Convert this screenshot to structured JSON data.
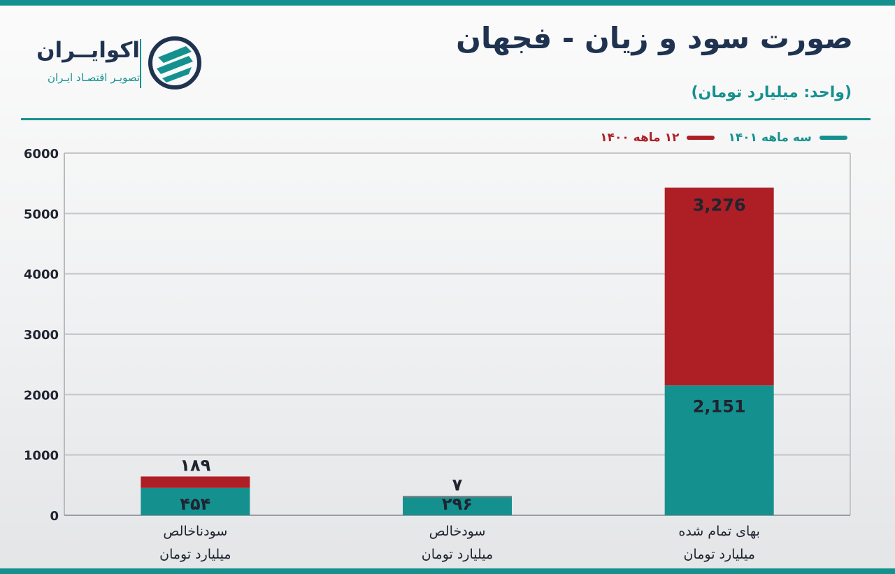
{
  "header": {
    "title": "صورت سود و زیان - فجهان",
    "subtitle": "(واحد: میلیارد تومان)"
  },
  "logo": {
    "name": "اکوایــران",
    "tagline": "تصویـر اقتصـاد ایـران"
  },
  "colors": {
    "teal": "#14918f",
    "red": "#ad1f25",
    "navy": "#1f3350"
  },
  "chart_data": {
    "type": "bar",
    "stacked": true,
    "title": "صورت سود و زیان - فجهان",
    "ylim": [
      0,
      6000
    ],
    "y_ticks": [
      {
        "value": 0,
        "label": "0"
      },
      {
        "value": 1000,
        "label": "1000"
      },
      {
        "value": 2000,
        "label": "2000"
      },
      {
        "value": 3000,
        "label": "3000"
      },
      {
        "value": 4000,
        "label": "4000"
      },
      {
        "value": 5000,
        "label": "5000"
      },
      {
        "value": 6000,
        "label": "6000"
      }
    ],
    "grid": true,
    "legend_position": "top-right",
    "categories": [
      {
        "line1": "سودناخالص",
        "line2": "میلیارد تومان"
      },
      {
        "line1": "سودخالص",
        "line2": "میلیارد تومان"
      },
      {
        "line1": "بهای تمام شده",
        "line2": "میلیارد تومان"
      }
    ],
    "series": [
      {
        "name": "سه ماهه ۱۴۰۱",
        "color": "#14918f",
        "values": [
          454,
          296,
          2151
        ],
        "labels": [
          "۴۵۴",
          "۲۹۶",
          "2,151"
        ],
        "label_color": "#1f2430"
      },
      {
        "name": "۱۲ ماهه ۱۴۰۰",
        "color": "#ad1f25",
        "values": [
          189,
          7,
          3276
        ],
        "labels": [
          "۱۸۹",
          "۷",
          "3,276"
        ],
        "label_color": "#1f2430"
      }
    ]
  }
}
